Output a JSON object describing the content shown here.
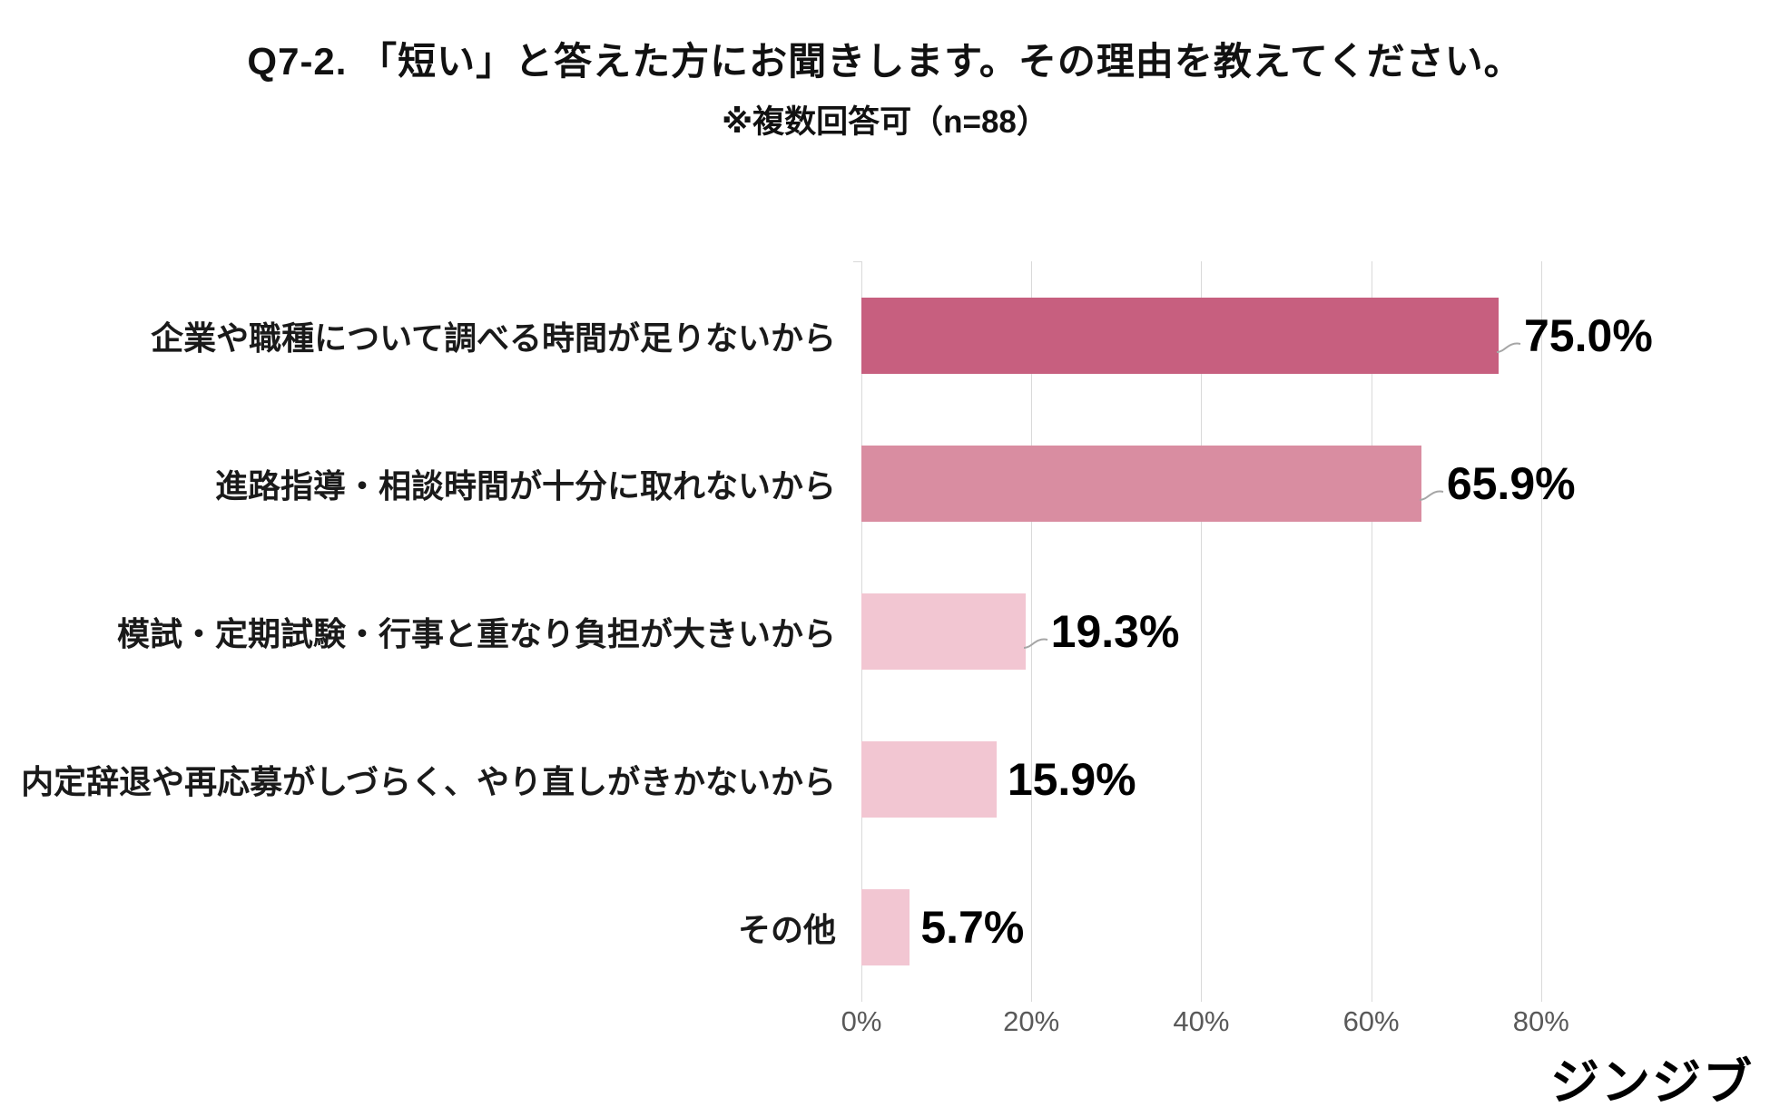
{
  "header": {
    "title": "Q7-2. 「短い」と答えた方にお聞きします。その理由を教えてください。",
    "subtitle": "※複数回答可（n=88）"
  },
  "footer": {
    "logo_text": "ジンジブ"
  },
  "chart_data": {
    "type": "bar",
    "orientation": "horizontal",
    "title": "Q7-2. 「短い」と答えた方にお聞きします。その理由を教えてください。",
    "subtitle": "※複数回答可（n=88）",
    "categories": [
      "企業や職種について調べる時間が足りないから",
      "進路指導・相談時間が十分に取れないから",
      "模試・定期試験・行事と重なり負担が大きいから",
      "内定辞退や再応募がしづらく、やり直しがきかないから",
      "その他"
    ],
    "values": [
      75.0,
      65.9,
      19.3,
      15.9,
      5.7
    ],
    "value_labels": [
      "75.0%",
      "65.9%",
      "19.3%",
      "15.9%",
      "5.7%"
    ],
    "bar_colors": [
      "#c75f7f",
      "#d98da1",
      "#f2c6d2",
      "#f2c6d2",
      "#f2c6d2"
    ],
    "leader_lines": [
      true,
      true,
      true,
      false,
      false
    ],
    "xtick_percents": [
      0,
      20,
      40,
      60,
      80
    ],
    "xtick_labels": [
      "0%",
      "20%",
      "40%",
      "60%",
      "80%"
    ],
    "xlim": [
      0,
      89.7
    ],
    "xlabel": "",
    "ylabel": "",
    "grid": true,
    "legend": false,
    "colors": {
      "grid": "#d9d9d9",
      "axis_tick_text": "#595959",
      "value_text": "#000000",
      "category_text": "#1a1a1a",
      "leader_line": "#a6a6a6"
    }
  }
}
